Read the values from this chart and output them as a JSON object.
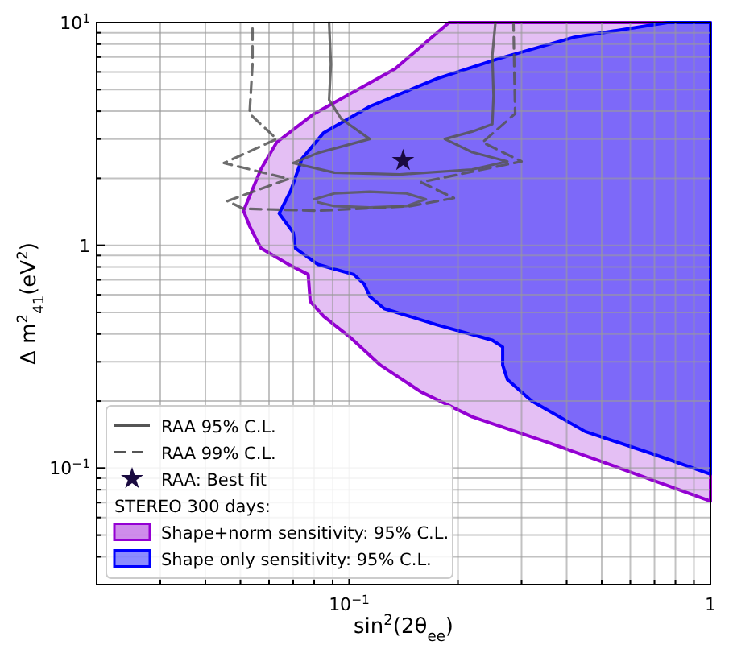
{
  "chart_data": {
    "type": "area",
    "xlabel": "sin$^{2}$(2θ$_{ee}$)",
    "ylabel": "Δ m$^{2}$$_{41}$(eV$^{2}$)",
    "log": "xy",
    "grid": true,
    "legend": "bottom left",
    "legend_title": "STEREO 300 days:",
    "xlim": [
      0.02,
      1
    ],
    "ylim": [
      0.03,
      10
    ],
    "xticks": [
      {
        "value": 0.02,
        "label": null
      },
      {
        "value": 0.03,
        "label": null
      },
      {
        "value": 0.04,
        "label": null
      },
      {
        "value": 0.05,
        "label": null
      },
      {
        "value": 0.06,
        "label": null
      },
      {
        "value": 0.07,
        "label": null
      },
      {
        "value": 0.08,
        "label": null
      },
      {
        "value": 0.09,
        "label": null
      },
      {
        "value": 0.1,
        "label": "10$^{−1}$"
      },
      {
        "value": 0.2,
        "label": null
      },
      {
        "value": 0.3,
        "label": null
      },
      {
        "value": 0.4,
        "label": null
      },
      {
        "value": 0.5,
        "label": null
      },
      {
        "value": 0.6,
        "label": null
      },
      {
        "value": 0.7,
        "label": null
      },
      {
        "value": 0.8,
        "label": null
      },
      {
        "value": 0.9,
        "label": null
      },
      1
    ],
    "yticks": [
      {
        "value": 0.03,
        "label": null
      },
      {
        "value": 0.04,
        "label": null
      },
      {
        "value": 0.05,
        "label": null
      },
      {
        "value": 0.06,
        "label": null
      },
      {
        "value": 0.07,
        "label": null
      },
      {
        "value": 0.08,
        "label": null
      },
      {
        "value": 0.09,
        "label": null
      },
      {
        "value": 0.1,
        "label": "10$^{−1}$"
      },
      {
        "value": 0.2,
        "label": null
      },
      {
        "value": 0.3,
        "label": null
      },
      {
        "value": 0.4,
        "label": null
      },
      {
        "value": 0.5,
        "label": null
      },
      {
        "value": 0.6,
        "label": null
      },
      {
        "value": 0.7,
        "label": null
      },
      {
        "value": 0.8,
        "label": null
      },
      {
        "value": 0.9,
        "label": null
      },
      1,
      {
        "value": 2,
        "label": null
      },
      {
        "value": 3,
        "label": null
      },
      {
        "value": 4,
        "label": null
      },
      {
        "value": 5,
        "label": null
      },
      {
        "value": 6,
        "label": null
      },
      {
        "value": 7,
        "label": null
      },
      {
        "value": 8,
        "label": null
      },
      {
        "value": 9,
        "label": null
      },
      {
        "value": 10,
        "label": "10$^{1}$"
      }
    ],
    "series": [
      {
        "name": "Shape+norm sensitivity: 95% C.L.",
        "color": "#9400d3",
        "x": [
          0.189,
          0.134,
          0.08,
          0.063,
          0.057,
          0.051,
          0.053,
          0.057,
          0.068,
          0.077,
          0.078,
          0.085,
          0.1,
          0.122,
          0.158,
          0.219,
          0.357,
          0.58,
          1,
          1
        ],
        "values": [
          10,
          6.2,
          3.9,
          2.9,
          2.2,
          1.43,
          1.22,
          0.97,
          0.82,
          0.74,
          0.56,
          0.48,
          0.39,
          0.29,
          0.22,
          0.17,
          0.13,
          0.098,
          0.071,
          10
        ]
      },
      {
        "name": "Shape only sensitivity: 95% C.L.",
        "color": "#0000ff",
        "x": [
          0.76,
          0.42,
          0.26,
          0.175,
          0.114,
          0.085,
          0.074,
          0.069,
          0.064,
          0.07,
          0.071,
          0.082,
          0.103,
          0.11,
          0.114,
          0.125,
          0.175,
          0.249,
          0.266,
          0.266,
          0.274,
          0.32,
          0.45,
          0.69,
          1,
          1
        ],
        "values": [
          10,
          8.6,
          6.9,
          5.6,
          4.2,
          3.2,
          2.45,
          1.77,
          1.39,
          1.14,
          0.97,
          0.82,
          0.74,
          0.67,
          0.59,
          0.52,
          0.44,
          0.375,
          0.35,
          0.29,
          0.25,
          0.2,
          0.146,
          0.116,
          0.094,
          10
        ]
      },
      {
        "name": "RAA 95% C.L.",
        "type": "line",
        "line_style": "solid",
        "color": "#555555",
        "x": [
          0.088,
          0.089,
          0.088,
          0.095,
          0.114,
          0.082,
          0.07,
          0.091,
          0.138,
          0.219,
          0.274,
          0.219,
          0.184,
          0.219,
          0.249,
          0.251,
          0.249,
          0.254
        ],
        "values": [
          10,
          6.5,
          4.5,
          3.7,
          3.0,
          2.6,
          2.34,
          2.12,
          2.08,
          2.19,
          2.38,
          2.62,
          3.0,
          3.24,
          3.5,
          4.7,
          7.1,
          10
        ]
      },
      {
        "name": "RAA 99% C.L.",
        "type": "line",
        "line_style": "dashed",
        "color": "#555555",
        "x": [
          0.054,
          0.054,
          0.053,
          0.063,
          0.045,
          0.068,
          0.046,
          0.051,
          0.082,
          0.148,
          0.195,
          0.158,
          0.3,
          0.234,
          0.288,
          0.285
        ],
        "values": [
          9.4,
          6.5,
          3.9,
          3.0,
          2.34,
          1.99,
          1.58,
          1.46,
          1.43,
          1.5,
          1.63,
          1.92,
          2.38,
          2.9,
          3.9,
          9.8
        ]
      },
      {
        "name": "RAA: Best fit",
        "type": "scatter",
        "marker": "star",
        "color": "#1a0a40",
        "x": [
          0.141
        ],
        "values": [
          2.4
        ]
      },
      {
        "type": "line",
        "line_style": "solid",
        "color": "#5a5a5a",
        "x": [
          0.08,
          0.091,
          0.114,
          0.144,
          0.163,
          0.144,
          0.114,
          0.091,
          0.082
        ],
        "values": [
          1.61,
          1.71,
          1.74,
          1.71,
          1.61,
          1.5,
          1.48,
          1.5,
          1.56
        ]
      }
    ]
  }
}
